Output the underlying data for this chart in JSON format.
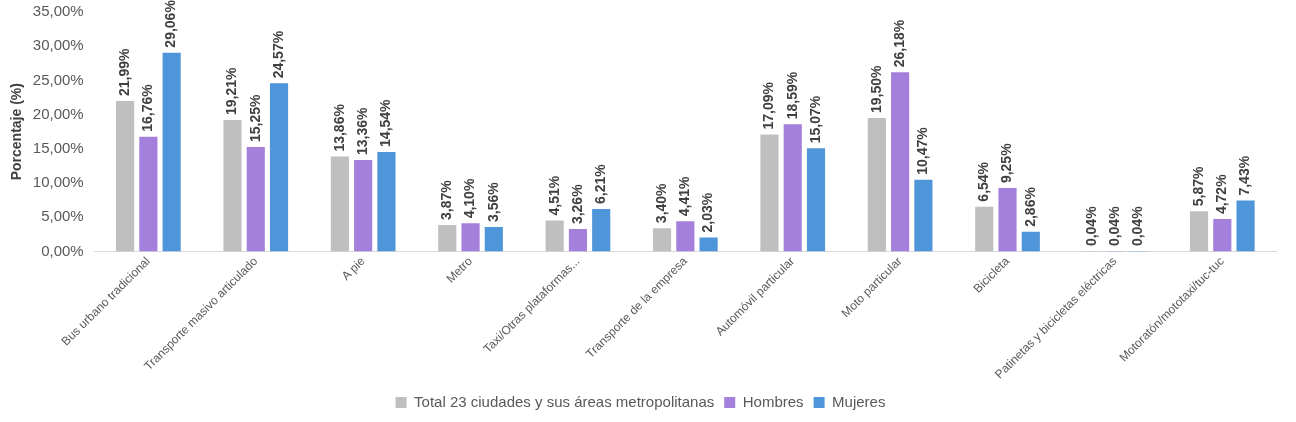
{
  "chart_data": {
    "type": "bar",
    "ylabel": "Porcentaje (%)",
    "categories": [
      "Bus urbano tradicional",
      "Transporte masivo articulado",
      "A pie",
      "Metro",
      "Taxi/Otras plataformas...",
      "Transporte de la empresa",
      "Automóvil particular",
      "Moto particular",
      "Bicicleta",
      "Patinetas y bicicletas eléctricas",
      "Motoratón/mototaxi/tuc-tuc"
    ],
    "series": [
      {
        "name": "Total 23 ciudades y sus áreas metropolitanas",
        "color": "#bfbfbf",
        "values": [
          21.99,
          19.21,
          13.86,
          3.87,
          4.51,
          3.4,
          17.09,
          19.5,
          6.54,
          0.04,
          5.87
        ],
        "value_labels": [
          "21,99%",
          "19,21%",
          "13,86%",
          "3,87%",
          "4,51%",
          "3,40%",
          "17,09%",
          "19,50%",
          "6,54%",
          "0,04%",
          "5,87%"
        ]
      },
      {
        "name": "Hombres",
        "color": "#a47fdc",
        "values": [
          16.76,
          15.25,
          13.36,
          4.1,
          3.26,
          4.41,
          18.59,
          26.18,
          9.25,
          0.04,
          4.72
        ],
        "value_labels": [
          "16,76%",
          "15,25%",
          "13,36%",
          "4,10%",
          "3,26%",
          "4,41%",
          "18,59%",
          "26,18%",
          "9,25%",
          "0,04%",
          "4,72%"
        ]
      },
      {
        "name": "Mujeres",
        "color": "#4e95d9",
        "values": [
          29.06,
          24.57,
          14.54,
          3.56,
          6.21,
          2.03,
          15.07,
          10.47,
          2.86,
          0.04,
          7.43
        ],
        "value_labels": [
          "29,06%",
          "24,57%",
          "14,54%",
          "3,56%",
          "6,21%",
          "2,03%",
          "15,07%",
          "10,47%",
          "2,86%",
          "0,04%",
          "7,43%"
        ]
      }
    ],
    "ylim": [
      0,
      35
    ],
    "yticks": [
      {
        "value": 0,
        "label": "0,00%"
      },
      {
        "value": 5,
        "label": "5,00%"
      },
      {
        "value": 10,
        "label": "10,00%"
      },
      {
        "value": 15,
        "label": "15,00%"
      },
      {
        "value": 20,
        "label": "20,00%"
      },
      {
        "value": 25,
        "label": "25,00%"
      },
      {
        "value": 30,
        "label": "30,00%"
      },
      {
        "value": 35,
        "label": "35,00%"
      }
    ],
    "grid": false,
    "legend": "bottom"
  }
}
